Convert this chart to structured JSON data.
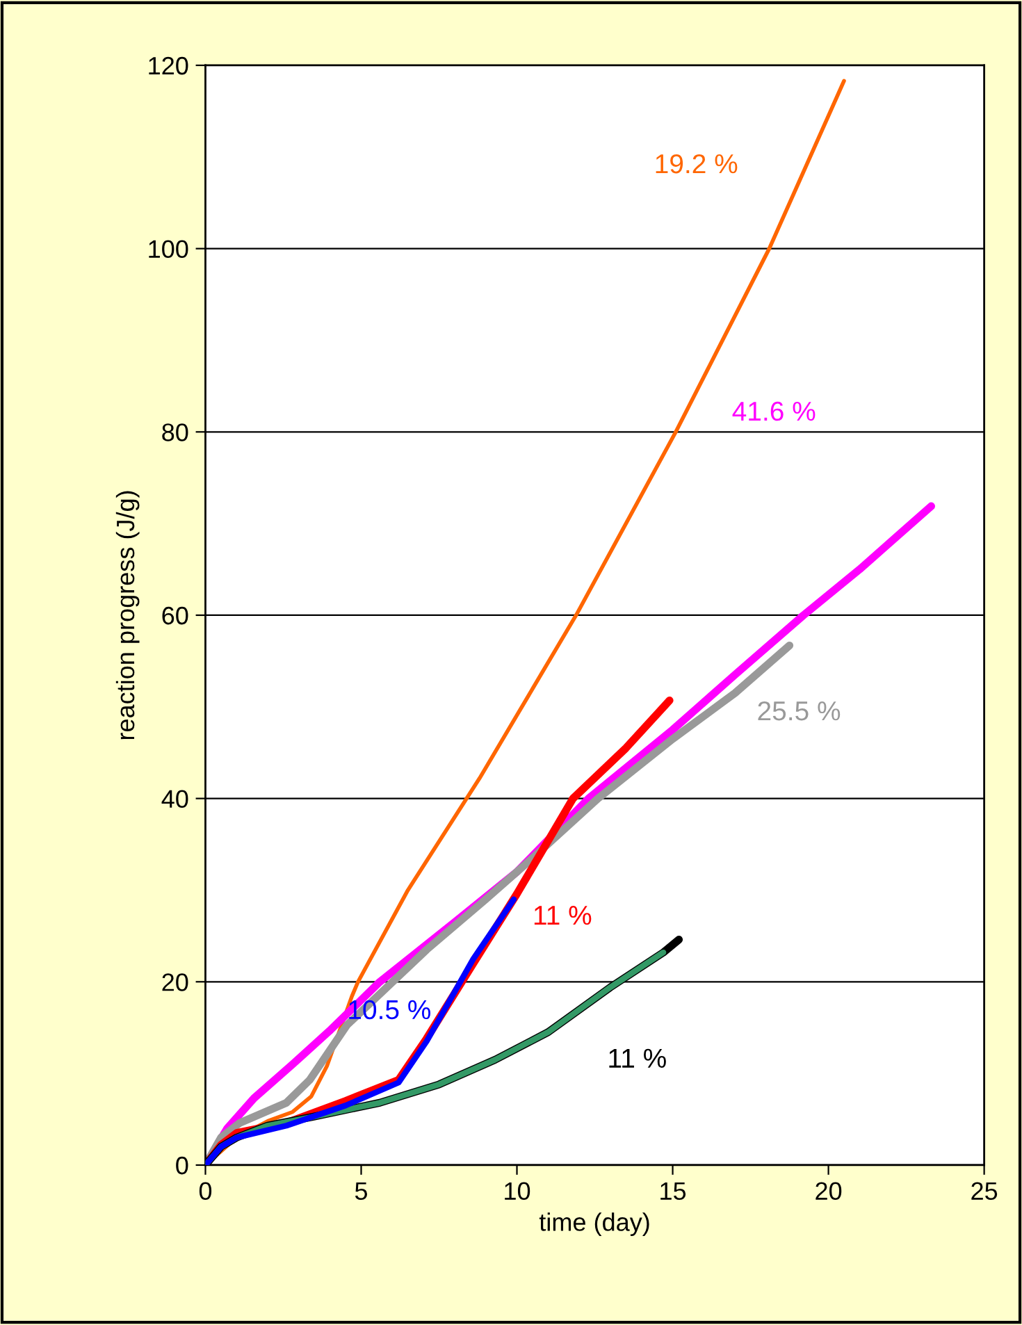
{
  "chart_data": {
    "type": "line",
    "xlabel": "time (day)",
    "ylabel": "reaction progress (J/g)",
    "xlim": [
      0,
      25
    ],
    "xticks": [
      0,
      5,
      10,
      15,
      20,
      25
    ],
    "ylim": [
      0,
      120
    ],
    "yticks": [
      0,
      20,
      40,
      60,
      80,
      100,
      120
    ],
    "grid": "y",
    "legend": false,
    "marker": "none",
    "line_style": "solid",
    "series": [
      {
        "name": "19.2 %",
        "color": "#ff6600",
        "x": [
          0,
          1,
          2,
          2.8,
          3.4,
          3.9,
          4.7,
          4.9,
          6.5,
          8.8,
          11.9,
          15.1,
          18.1,
          20.5
        ],
        "values": [
          0,
          3,
          4.8,
          5.8,
          7.5,
          10.8,
          18.4,
          20,
          30,
          42.2,
          60,
          80,
          100,
          118.3
        ]
      },
      {
        "name": "41.6 %",
        "color": "#ff00ff",
        "x": [
          0,
          0.7,
          1.56,
          2.8,
          3.97,
          5.6,
          8,
          10,
          12.3,
          15,
          17,
          19.2,
          21,
          23.3
        ],
        "values": [
          0,
          4,
          7.3,
          11,
          14.6,
          20,
          26.5,
          32,
          40,
          47.5,
          53.5,
          60,
          65,
          71.9
        ]
      },
      {
        "name": "25.5 %",
        "color": "#999999",
        "x": [
          0,
          0.5,
          1.1,
          2.6,
          3.35,
          4.55,
          7.1,
          9,
          10.5,
          12.6,
          15,
          17,
          18.75
        ],
        "values": [
          0,
          3,
          4.6,
          6.8,
          9.3,
          15.3,
          23.5,
          29,
          33.5,
          40,
          46.5,
          51.5,
          56.7
        ]
      },
      {
        "name": "10.5 %",
        "color": "#0000ff",
        "x": [
          0,
          0.5,
          1,
          2.6,
          4.5,
          6.2,
          7.1,
          8.6,
          9.9
        ],
        "values": [
          0,
          2,
          3,
          4.3,
          6.5,
          9,
          13.5,
          22.5,
          29
        ]
      },
      {
        "name": "11 %",
        "color": "#ff0000",
        "x": [
          0,
          0.5,
          1,
          2.6,
          4.5,
          6.2,
          7.1,
          8.6,
          10,
          11.8,
          13.5,
          14.9
        ],
        "values": [
          0,
          2.2,
          3.5,
          4.6,
          7,
          9.3,
          13.8,
          22,
          29.6,
          40,
          45.5,
          50.7
        ]
      },
      {
        "name": "11 %",
        "color": "#000000",
        "x": [
          0,
          0.5,
          1,
          2,
          3.5,
          5.6,
          7.5,
          9.3,
          11,
          13,
          14.7,
          15.2
        ],
        "values": [
          0,
          2,
          3,
          4.3,
          5.3,
          6.8,
          8.8,
          11.5,
          14.5,
          19.4,
          23.2,
          24.6
        ]
      },
      {
        "color": "#339966",
        "x": [
          0,
          0.5,
          1,
          2,
          3.5,
          5.6,
          7.5,
          9.3,
          11,
          13,
          14.7
        ],
        "values": [
          0,
          2,
          3,
          4.3,
          5.3,
          6.8,
          8.8,
          11.5,
          14.5,
          19.4,
          23.2
        ]
      }
    ]
  }
}
